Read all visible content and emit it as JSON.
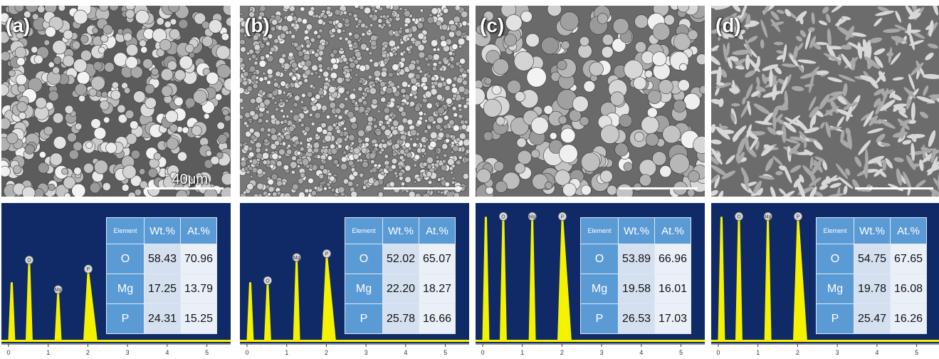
{
  "panels": [
    {
      "label": "(a)",
      "scale_text": "40μm",
      "texture": "clusters",
      "table": {
        "headers": [
          "Element",
          "Wt.%",
          "At.%"
        ],
        "rows": [
          [
            "O",
            "58.43",
            "70.96"
          ],
          [
            "Mg",
            "17.25",
            "13.79"
          ],
          [
            "P",
            "24.31",
            "15.25"
          ]
        ]
      },
      "peaks": [
        {
          "el": "O",
          "energy": 0.52,
          "height": 0.6
        },
        {
          "el": "Mg",
          "energy": 1.25,
          "height": 0.37
        },
        {
          "el": "P",
          "energy": 2.01,
          "height": 0.53
        }
      ],
      "first_peak_height": 0.46
    },
    {
      "label": "(b)",
      "scale_text": "",
      "texture": "fine",
      "table": {
        "headers": [
          "Element",
          "Wt.%",
          "At.%"
        ],
        "rows": [
          [
            "O",
            "52.02",
            "65.07"
          ],
          [
            "Mg",
            "22.20",
            "18.27"
          ],
          [
            "P",
            "25.78",
            "16.66"
          ]
        ]
      },
      "peaks": [
        {
          "el": "O",
          "energy": 0.52,
          "height": 0.44
        },
        {
          "el": "Mg",
          "energy": 1.25,
          "height": 0.62
        },
        {
          "el": "P",
          "energy": 2.01,
          "height": 0.65
        }
      ],
      "first_peak_height": 0.46
    },
    {
      "label": "(c)",
      "scale_text": "",
      "texture": "coarse",
      "table": {
        "headers": [
          "Element",
          "Wt.%",
          "At.%"
        ],
        "rows": [
          [
            "O",
            "53.89",
            "66.96"
          ],
          [
            "Mg",
            "19.58",
            "16.01"
          ],
          [
            "P",
            "26.53",
            "17.03"
          ]
        ]
      },
      "peaks": [
        {
          "el": "O",
          "energy": 0.52,
          "height": 0.94
        },
        {
          "el": "Mg",
          "energy": 1.25,
          "height": 0.94
        },
        {
          "el": "P",
          "energy": 2.01,
          "height": 0.94
        }
      ],
      "first_peak_height": 0.97
    },
    {
      "label": "(d)",
      "scale_text": "",
      "texture": "flakes",
      "table": {
        "headers": [
          "Element",
          "Wt.%",
          "At.%"
        ],
        "rows": [
          [
            "O",
            "54.75",
            "67.65"
          ],
          [
            "Mg",
            "19.78",
            "16.08"
          ],
          [
            "P",
            "25.47",
            "16.26"
          ]
        ]
      },
      "peaks": [
        {
          "el": "O",
          "energy": 0.52,
          "height": 0.94
        },
        {
          "el": "Mg",
          "energy": 1.25,
          "height": 0.94
        },
        {
          "el": "P",
          "energy": 2.01,
          "height": 0.94
        }
      ],
      "first_peak_height": 0.97
    }
  ],
  "energy_axis": {
    "ticks": [
      "0",
      "1",
      "2",
      "3",
      "4",
      "5"
    ],
    "range": [
      0,
      5.6
    ]
  },
  "colors": {
    "eds_background": "#0f2a66",
    "spectrum": "#f5f200",
    "table_header": "#5b9bd5"
  }
}
